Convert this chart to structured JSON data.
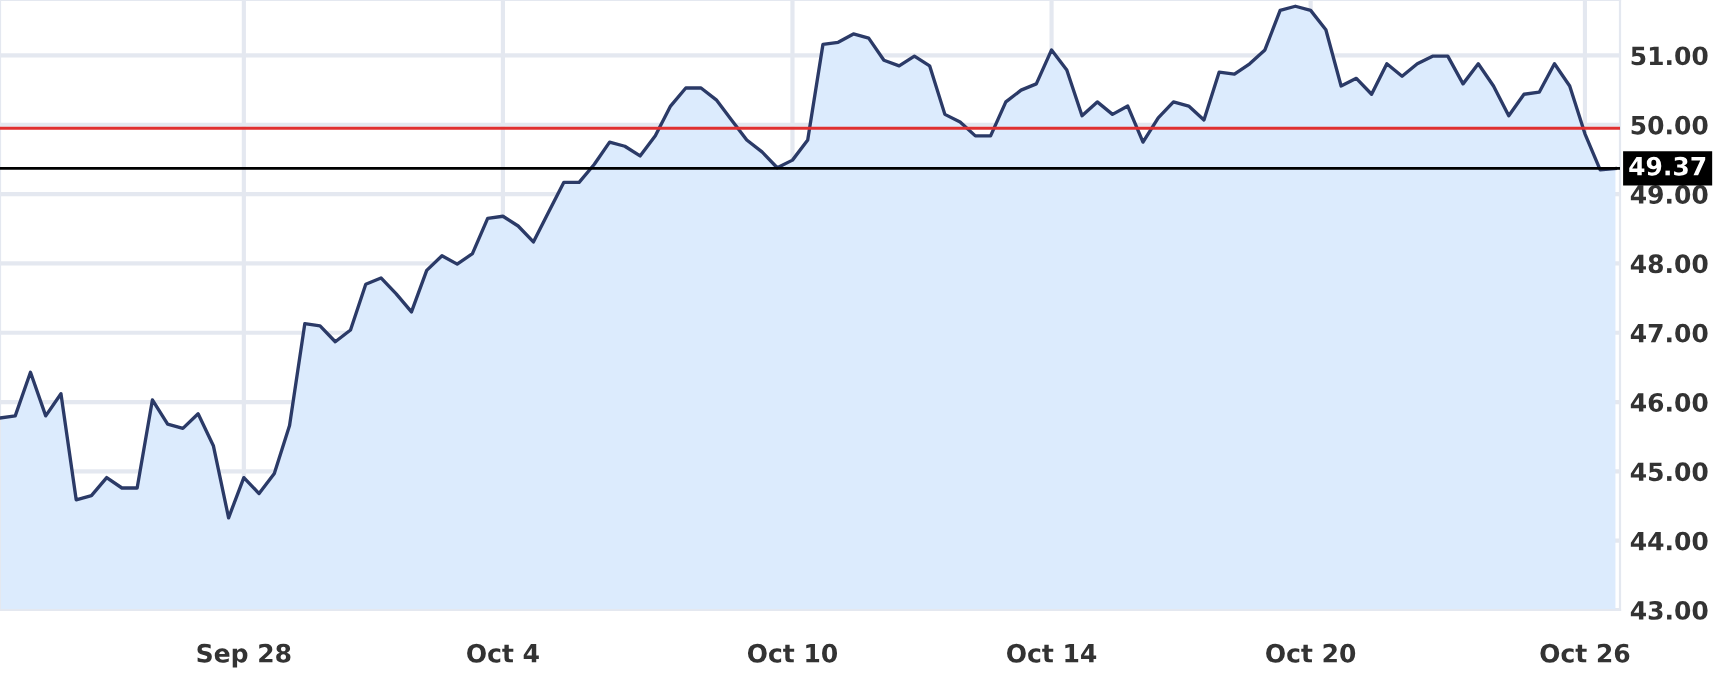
{
  "chart_data": {
    "type": "area",
    "categories": [
      null,
      null,
      null,
      null,
      null,
      null,
      null,
      null,
      null,
      null,
      null,
      null,
      null,
      null,
      null,
      null,
      "Sep 28",
      null,
      null,
      null,
      null,
      null,
      null,
      null,
      null,
      null,
      null,
      null,
      null,
      null,
      null,
      null,
      null,
      "Oct 4",
      null,
      null,
      null,
      null,
      null,
      null,
      null,
      null,
      null,
      null,
      null,
      null,
      null,
      null,
      null,
      null,
      null,
      null,
      "Oct 10",
      null,
      null,
      null,
      null,
      null,
      null,
      null,
      null,
      null,
      null,
      null,
      null,
      null,
      null,
      null,
      null,
      "Oct 14",
      null,
      null,
      null,
      null,
      null,
      null,
      null,
      null,
      null,
      null,
      null,
      null,
      null,
      null,
      null,
      null,
      "Oct 20",
      null,
      null,
      null,
      null,
      null,
      null,
      null,
      null,
      null,
      null,
      null,
      null,
      null,
      null,
      null,
      null,
      null,
      "Oct 26",
      null,
      null
    ],
    "series": [
      {
        "color": "#dcebfd",
        "values": [
          45.77,
          45.8,
          46.43,
          45.8,
          46.12,
          44.59,
          44.65,
          44.91,
          44.76,
          44.76,
          46.03,
          45.68,
          45.62,
          45.83,
          45.37,
          44.33,
          44.91,
          44.68,
          44.97,
          45.66,
          47.13,
          47.1,
          46.87,
          47.04,
          47.7,
          47.79,
          47.56,
          47.3,
          47.9,
          48.11,
          47.99,
          48.14,
          48.65,
          48.68,
          48.54,
          48.31,
          48.74,
          49.17,
          49.17,
          49.43,
          49.75,
          49.69,
          49.55,
          49.84,
          50.27,
          50.53,
          50.53,
          50.36,
          50.07,
          49.78,
          49.61,
          49.38,
          49.49,
          49.78,
          51.16,
          51.19,
          51.31,
          51.25,
          50.93,
          50.85,
          50.99,
          50.85,
          50.15,
          50.04,
          49.84,
          49.84,
          50.33,
          50.5,
          50.59,
          51.08,
          50.79,
          50.13,
          50.33,
          50.15,
          50.27,
          49.75,
          50.1,
          50.33,
          50.27,
          50.07,
          50.76,
          50.73,
          50.88,
          51.08,
          51.65,
          51.71,
          51.65,
          51.37,
          50.56,
          50.67,
          50.44,
          50.88,
          50.7,
          50.88,
          50.99,
          50.99,
          50.59,
          50.88,
          50.56,
          50.13,
          50.44,
          50.47,
          50.88,
          50.56,
          49.87,
          49.35,
          49.37
        ]
      }
    ],
    "ylim": [
      43,
      51.8
    ],
    "yticks": [
      {
        "value": 43,
        "label": "43.00"
      },
      {
        "value": 44,
        "label": "44.00"
      },
      {
        "value": 45,
        "label": "45.00"
      },
      {
        "value": 46,
        "label": "46.00"
      },
      {
        "value": 47,
        "label": "47.00"
      },
      {
        "value": 48,
        "label": "48.00"
      },
      {
        "value": 49,
        "label": "49.00"
      },
      {
        "value": 50,
        "label": "50.00"
      },
      {
        "value": 51,
        "label": "51.00"
      }
    ],
    "ref_lines": [
      {
        "axis": "y",
        "value": 49.95,
        "color": "#e03030"
      },
      {
        "axis": "y",
        "value": 49.37,
        "label": "49.37",
        "color": "#000000"
      }
    ],
    "grid": true
  }
}
